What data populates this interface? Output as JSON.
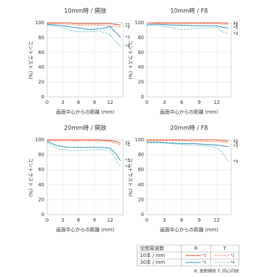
{
  "chart_data": [
    {
      "type": "line",
      "title": "10mm時 / 開放",
      "x_label": "画面中心からの距離 (mm)",
      "y_label": "コントラスト (%)",
      "x": [
        0,
        2,
        4,
        6,
        8,
        10,
        12,
        13,
        14
      ],
      "xlim": [
        0,
        14.5
      ],
      "ylim": [
        0,
        100
      ],
      "xticks": [
        0,
        3,
        6,
        9,
        12
      ],
      "yticks": [
        0,
        20,
        40,
        60,
        80,
        100
      ],
      "grid": true,
      "series": [
        {
          "name": "*1",
          "color": "#e8432a",
          "dashed": false,
          "values": [
            100,
            100,
            100,
            99,
            99,
            99,
            99,
            98,
            97
          ]
        },
        {
          "name": "*2",
          "color": "#f08a5d",
          "dashed": true,
          "values": [
            99,
            99,
            98,
            97,
            97,
            97,
            96,
            95,
            94
          ]
        },
        {
          "name": "*3",
          "color": "#2a8fc0",
          "dashed": false,
          "values": [
            98,
            97,
            95,
            93,
            91,
            92,
            95,
            88,
            80
          ]
        },
        {
          "name": "*4",
          "color": "#7cc8c8",
          "dashed": true,
          "values": [
            97,
            95,
            91,
            88,
            88,
            89,
            84,
            75,
            68
          ]
        }
      ]
    },
    {
      "type": "line",
      "title": "10mm時 / F8",
      "x_label": "画面中心からの距離 (mm)",
      "y_label": "コントラスト (%)",
      "x": [
        0,
        2,
        4,
        6,
        8,
        10,
        12,
        13,
        14
      ],
      "xlim": [
        0,
        14.5
      ],
      "ylim": [
        0,
        100
      ],
      "xticks": [
        0,
        3,
        6,
        9,
        12
      ],
      "yticks": [
        0,
        20,
        40,
        60,
        80,
        100
      ],
      "grid": true,
      "series": [
        {
          "name": "*1",
          "color": "#e8432a",
          "dashed": false,
          "values": [
            100,
            100,
            100,
            100,
            100,
            100,
            100,
            100,
            99
          ]
        },
        {
          "name": "*2",
          "color": "#f08a5d",
          "dashed": true,
          "values": [
            100,
            99,
            99,
            99,
            99,
            99,
            99,
            98,
            97
          ]
        },
        {
          "name": "*3",
          "color": "#2a8fc0",
          "dashed": false,
          "values": [
            98,
            98,
            97,
            97,
            96,
            96,
            96,
            94,
            93
          ]
        },
        {
          "name": "*4",
          "color": "#7cc8c8",
          "dashed": true,
          "values": [
            97,
            96,
            94,
            91,
            92,
            93,
            94,
            88,
            85
          ]
        }
      ]
    },
    {
      "type": "line",
      "title": "20mm時 / 開放",
      "x_label": "画面中心からの距離 (mm)",
      "y_label": "コントラスト (%)",
      "x": [
        0,
        2,
        4,
        6,
        8,
        10,
        12,
        13,
        14
      ],
      "xlim": [
        0,
        14.5
      ],
      "ylim": [
        0,
        100
      ],
      "xticks": [
        0,
        3,
        6,
        9,
        12
      ],
      "yticks": [
        0,
        20,
        40,
        60,
        80,
        100
      ],
      "grid": true,
      "series": [
        {
          "name": "*1",
          "color": "#e8432a",
          "dashed": false,
          "values": [
            100,
            100,
            100,
            100,
            100,
            100,
            99,
            98,
            96
          ]
        },
        {
          "name": "*2",
          "color": "#f08a5d",
          "dashed": true,
          "values": [
            99,
            99,
            99,
            99,
            99,
            99,
            98,
            96,
            93
          ]
        },
        {
          "name": "*3",
          "color": "#2a8fc0",
          "dashed": false,
          "values": [
            98,
            92,
            90,
            90,
            90,
            90,
            89,
            82,
            72
          ]
        },
        {
          "name": "*4",
          "color": "#7cc8c8",
          "dashed": true,
          "values": [
            96,
            88,
            86,
            86,
            86,
            87,
            86,
            76,
            64
          ]
        }
      ]
    },
    {
      "type": "line",
      "title": "20mm時 / F8",
      "x_label": "画面中心からの距離 (mm)",
      "y_label": "コントラスト (%)",
      "x": [
        0,
        2,
        4,
        6,
        8,
        10,
        12,
        13,
        14
      ],
      "xlim": [
        0,
        14.5
      ],
      "ylim": [
        0,
        100
      ],
      "xticks": [
        0,
        3,
        6,
        9,
        12
      ],
      "yticks": [
        0,
        20,
        40,
        60,
        80,
        100
      ],
      "grid": true,
      "series": [
        {
          "name": "*1",
          "color": "#e8432a",
          "dashed": false,
          "values": [
            100,
            100,
            100,
            100,
            100,
            100,
            100,
            99,
            98
          ]
        },
        {
          "name": "*2",
          "color": "#f08a5d",
          "dashed": true,
          "values": [
            99,
            99,
            99,
            99,
            98,
            98,
            98,
            97,
            96
          ]
        },
        {
          "name": "*3",
          "color": "#2a8fc0",
          "dashed": false,
          "values": [
            97,
            97,
            96,
            95,
            95,
            94,
            93,
            92,
            91
          ]
        },
        {
          "name": "*4",
          "color": "#7cc8c8",
          "dashed": true,
          "values": [
            96,
            96,
            95,
            94,
            93,
            92,
            90,
            82,
            71
          ]
        }
      ]
    }
  ],
  "legend_table": {
    "header": [
      "空間周波数",
      "R",
      "T"
    ],
    "rows": [
      [
        "10本 / mm",
        "*1",
        "*2"
      ],
      [
        "30本 / mm",
        "*3",
        "*4"
      ]
    ],
    "note": "R: 放射線状  T: 同心円状"
  }
}
